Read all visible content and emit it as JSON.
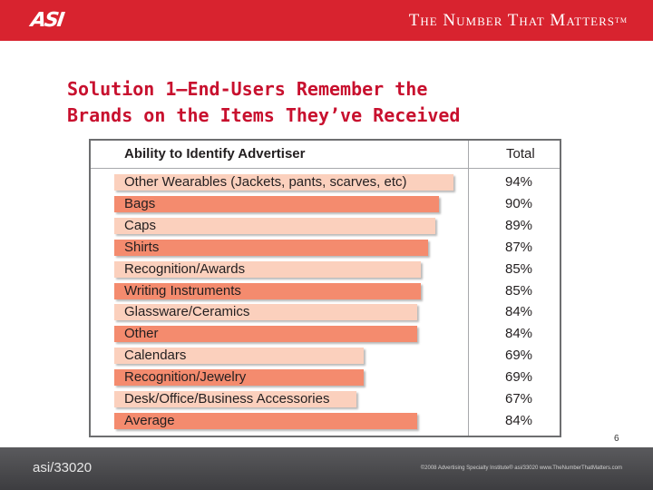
{
  "header": {
    "logo": "ASI",
    "tagline": "The Number That Matters",
    "trademark": "TM",
    "background_color": "#d8232f"
  },
  "title_line1": "Solution 1—End-Users Remember the",
  "title_line2": "Brands on the Items They’ve Received",
  "chart_data": {
    "type": "bar",
    "orientation": "horizontal",
    "title": "Ability to Identify Advertiser",
    "value_header": "Total",
    "categories": [
      "Other Wearables (Jackets, pants, scarves, etc)",
      "Bags",
      "Caps",
      "Shirts",
      "Recognition/Awards",
      "Writing Instruments",
      "Glassware/Ceramics",
      "Other",
      "Calendars",
      "Recognition/Jewelry",
      "Desk/Office/Business Accessories",
      "Average"
    ],
    "values": [
      94,
      90,
      89,
      87,
      85,
      85,
      84,
      84,
      69,
      69,
      67,
      84
    ],
    "value_labels": [
      "94%",
      "90%",
      "89%",
      "87%",
      "85%",
      "85%",
      "84%",
      "84%",
      "69%",
      "69%",
      "67%",
      "84%"
    ],
    "bar_colors": [
      "#fbd0bd",
      "#f48b6e"
    ],
    "xlim": [
      0,
      100
    ]
  },
  "page_number": "6",
  "footer": {
    "code": "asi/33020",
    "copyright": "©2008 Advertising Specialty Institute® asi/33020   www.TheNumberThatMatters.com"
  }
}
